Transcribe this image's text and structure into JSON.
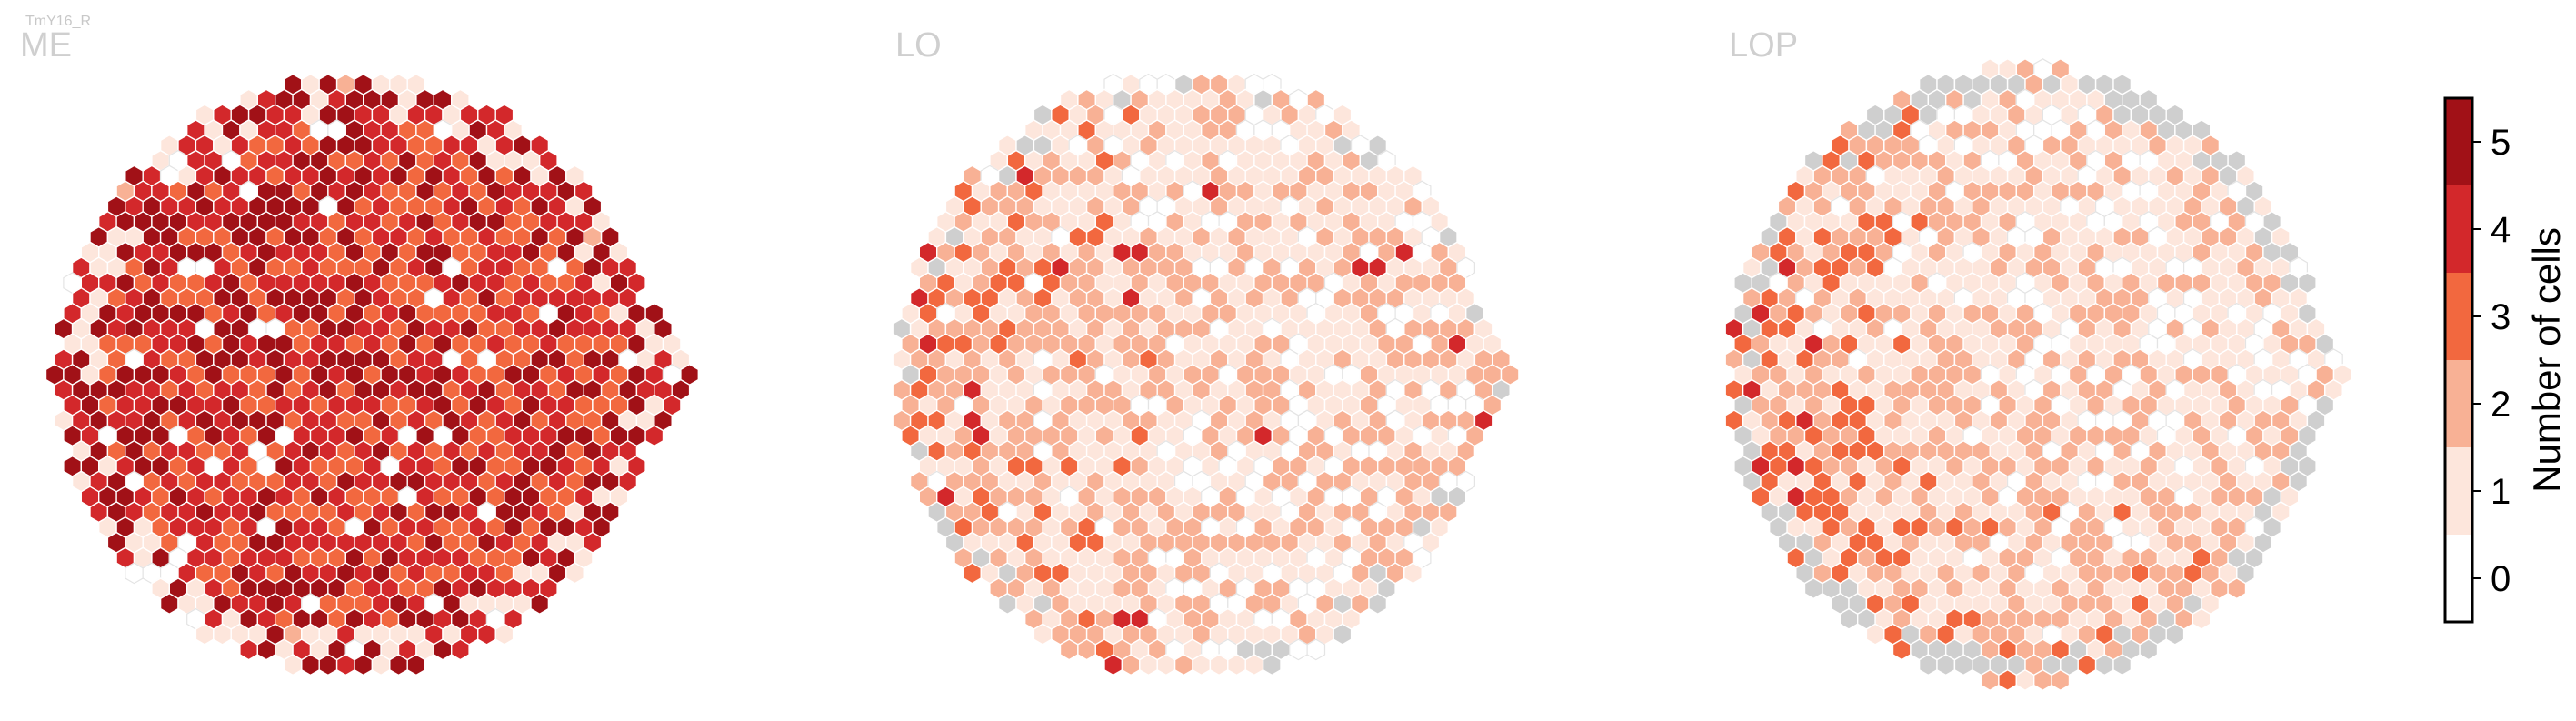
{
  "figure": {
    "top_title": "TmY16_R"
  },
  "chart_data": {
    "type": "heatmap",
    "description_encoding": "hexagonal column grid; each hex colored by number of cells",
    "panels": [
      {
        "title": "ME",
        "levels_present": [
          0,
          1,
          2,
          3,
          4,
          5
        ],
        "no_data_present": false,
        "predominant_range": [
          3,
          5
        ],
        "mean_level_approx": 3.4,
        "cells": [
          {
            "row": 0,
            "col": 0,
            "value": 4
          },
          {
            "row": 0,
            "col": 1,
            "value": 3
          },
          {
            "row": 0,
            "col": 2,
            "value": 4
          },
          {
            "row": 1,
            "col": 0,
            "value": 5
          },
          {
            "row": 1,
            "col": 1,
            "value": 3
          },
          {
            "row": 1,
            "col": 2,
            "value": 2
          }
        ]
      },
      {
        "title": "LO",
        "levels_present": [
          0,
          1,
          2,
          3,
          4,
          5
        ],
        "no_data_present": true,
        "predominant_range": [
          0,
          2
        ],
        "mean_level_approx": 1.3,
        "cells": [
          {
            "row": 0,
            "col": 0,
            "value": 1
          },
          {
            "row": 0,
            "col": 1,
            "value": 0
          },
          {
            "row": 0,
            "col": 2,
            "value": 2
          },
          {
            "row": 1,
            "col": 0,
            "value": 1
          },
          {
            "row": 1,
            "col": 1,
            "value": 3
          },
          {
            "row": 1,
            "col": 2,
            "value": 1
          }
        ]
      },
      {
        "title": "LOP",
        "levels_present": [
          0,
          1,
          2,
          3,
          4,
          5
        ],
        "no_data_present": true,
        "predominant_range": [
          1,
          3
        ],
        "mean_level_approx": 2.0,
        "cells": [
          {
            "row": 0,
            "col": 0,
            "value": 2
          },
          {
            "row": 0,
            "col": 1,
            "value": 1
          },
          {
            "row": 0,
            "col": 2,
            "value": 3
          },
          {
            "row": 1,
            "col": 0,
            "value": 4
          },
          {
            "row": 1,
            "col": 1,
            "value": 2
          },
          {
            "row": 1,
            "col": 2,
            "value": 1
          }
        ]
      }
    ],
    "colorbar": {
      "label": "Number of cells",
      "ticks": [
        "0",
        "1",
        "2",
        "3",
        "4",
        "5"
      ],
      "range": [
        0,
        5
      ],
      "colors": [
        "#ffffff",
        "#fde6dc",
        "#f8b195",
        "#f2683f",
        "#d3282b",
        "#a11117"
      ]
    },
    "no_data_color": "#cfcfcf"
  }
}
